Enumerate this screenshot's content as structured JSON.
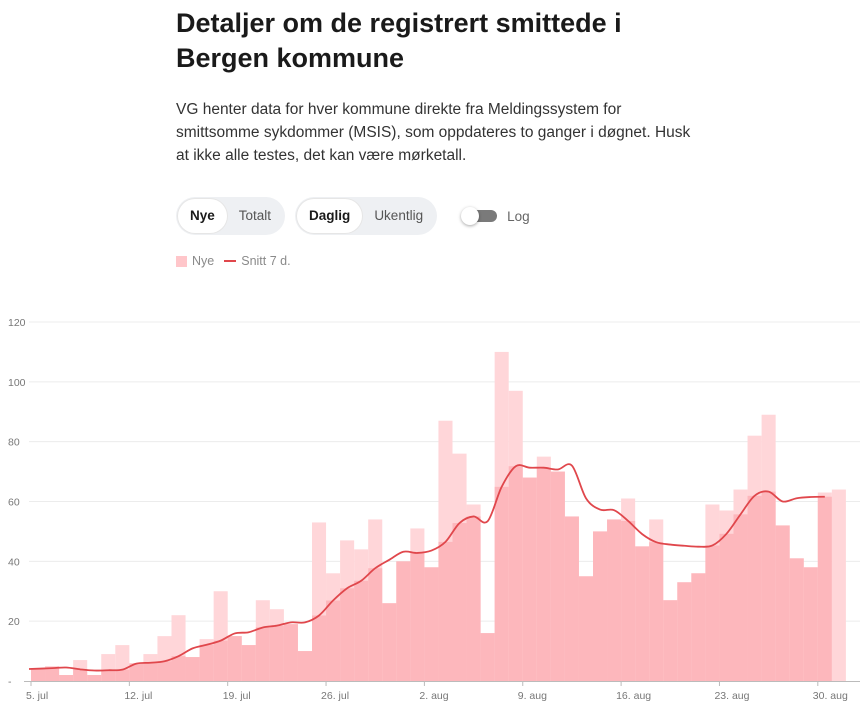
{
  "header": {
    "title": "Detaljer om de registrert smittede i Bergen kommune",
    "description": "VG henter data for hver kommune direkte fra Meldingssystem for smittsomme sykdommer (MSIS), som oppdateres to ganger i døgnet. Husk at ikke alle testes, det kan være mørketall."
  },
  "controls": {
    "metric_toggle": {
      "options": [
        "Nye",
        "Totalt"
      ],
      "selected": "Nye"
    },
    "interval_toggle": {
      "options": [
        "Daglig",
        "Ukentlig"
      ],
      "selected": "Daglig"
    },
    "log_toggle": {
      "label": "Log",
      "on": false
    }
  },
  "legend": {
    "bars": "Nye",
    "line": "Snitt 7 d."
  },
  "colors": {
    "bar_light": "#ffd6d9",
    "bar_dark": "#fdb7bc",
    "line": "#e0474c",
    "grid": "#ececec"
  },
  "chart_data": {
    "type": "bar",
    "x": [
      "2021-07-05",
      "2021-07-06",
      "2021-07-07",
      "2021-07-08",
      "2021-07-09",
      "2021-07-10",
      "2021-07-11",
      "2021-07-12",
      "2021-07-13",
      "2021-07-14",
      "2021-07-15",
      "2021-07-16",
      "2021-07-17",
      "2021-07-18",
      "2021-07-19",
      "2021-07-20",
      "2021-07-21",
      "2021-07-22",
      "2021-07-23",
      "2021-07-24",
      "2021-07-25",
      "2021-07-26",
      "2021-07-27",
      "2021-07-28",
      "2021-07-29",
      "2021-07-30",
      "2021-07-31",
      "2021-08-01",
      "2021-08-02",
      "2021-08-03",
      "2021-08-04",
      "2021-08-05",
      "2021-08-06",
      "2021-08-07",
      "2021-08-08",
      "2021-08-09",
      "2021-08-10",
      "2021-08-11",
      "2021-08-12",
      "2021-08-13",
      "2021-08-14",
      "2021-08-15",
      "2021-08-16",
      "2021-08-17",
      "2021-08-18",
      "2021-08-19",
      "2021-08-20",
      "2021-08-21",
      "2021-08-22",
      "2021-08-23",
      "2021-08-24",
      "2021-08-25",
      "2021-08-26",
      "2021-08-27",
      "2021-08-28",
      "2021-08-29",
      "2021-08-30",
      "2021-08-31",
      "2021-09-01"
    ],
    "series": [
      {
        "name": "Nye",
        "type": "bar",
        "values": [
          4,
          5,
          2,
          7,
          2,
          9,
          12,
          6,
          9,
          15,
          22,
          8,
          14,
          30,
          15,
          12,
          27,
          24,
          19,
          10,
          53,
          36,
          47,
          44,
          54,
          26,
          40,
          51,
          38,
          87,
          76,
          59,
          16,
          110,
          97,
          68,
          75,
          70,
          55,
          35,
          50,
          54,
          61,
          45,
          54,
          27,
          33,
          36,
          59,
          57,
          64,
          82,
          89,
          52,
          41,
          38,
          63,
          64,
          0
        ]
      },
      {
        "name": "Snitt 7 d.",
        "type": "line",
        "values": [
          4,
          4.3,
          4.5,
          3.9,
          3.5,
          3.6,
          3.8,
          5.8,
          6.1,
          6.6,
          8.3,
          10.9,
          12.1,
          13.5,
          15.9,
          16.3,
          17.9,
          18.5,
          19.6,
          19.6,
          21.9,
          26.9,
          31,
          33.5,
          37.7,
          40.5,
          43.2,
          42.8,
          43.6,
          46.5,
          52.8,
          55,
          53.4,
          64.9,
          71.8,
          71.3,
          71.3,
          70.7,
          72,
          61.1,
          57.3,
          57.1,
          53.5,
          49.1,
          46.4,
          45.6,
          45.2,
          44.9,
          45.3,
          49.2,
          55.7,
          61.9,
          63.3,
          60,
          61.1,
          61.5,
          61.6,
          null,
          null
        ]
      }
    ],
    "x_ticks": [
      "5. jul",
      "12. jul",
      "19. jul",
      "26. jul",
      "2. aug",
      "9. aug",
      "16. aug",
      "23. aug",
      "30. aug"
    ],
    "y_ticks": [
      "-",
      "20",
      "40",
      "60",
      "80",
      "100",
      "120"
    ],
    "ylim": [
      0,
      120
    ],
    "grid": true,
    "legend_position": "top-left",
    "xlabel": "",
    "ylabel": ""
  }
}
